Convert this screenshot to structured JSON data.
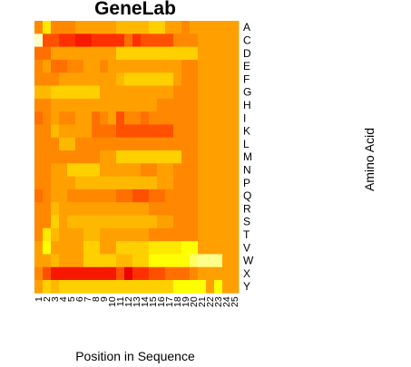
{
  "chart_data": {
    "type": "heatmap",
    "title": "GeneLab",
    "xlabel": "Position in Sequence",
    "ylabel": "Amino Acid",
    "x": [
      "1",
      "2",
      "3",
      "4",
      "5",
      "6",
      "7",
      "8",
      "9",
      "10",
      "11",
      "12",
      "13",
      "14",
      "15",
      "16",
      "17",
      "18",
      "19",
      "20",
      "21",
      "22",
      "23",
      "24",
      "25"
    ],
    "y": [
      "A",
      "C",
      "D",
      "E",
      "F",
      "G",
      "H",
      "I",
      "K",
      "L",
      "M",
      "N",
      "P",
      "Q",
      "R",
      "S",
      "T",
      "V",
      "W",
      "X",
      "Y"
    ],
    "legend": "none",
    "grid": false,
    "colormap": [
      "#ffffc8",
      "#ffff00",
      "#ffd000",
      "#ffa000",
      "#ff7000",
      "#ff3000",
      "#ee0000"
    ],
    "values": [
      [
        3.5,
        1.5,
        3.5,
        3.5,
        3.5,
        3.0,
        3.0,
        3.0,
        3.0,
        3.0,
        2.5,
        2.5,
        2.5,
        2.5,
        2.0,
        2.0,
        3.0,
        3.0,
        3.5,
        3.0,
        3.0,
        3.0,
        3.0,
        3.0,
        3.0
      ],
      [
        0.0,
        4.5,
        4.5,
        5.0,
        5.0,
        5.5,
        5.5,
        5.0,
        5.0,
        5.0,
        5.0,
        4.0,
        5.0,
        4.5,
        4.5,
        4.5,
        4.5,
        3.5,
        3.5,
        3.5,
        3.0,
        3.0,
        3.0,
        3.0,
        3.0
      ],
      [
        4.0,
        4.0,
        3.0,
        3.0,
        3.0,
        3.0,
        3.0,
        3.0,
        3.0,
        3.0,
        2.0,
        2.0,
        2.0,
        2.0,
        2.0,
        2.0,
        2.0,
        2.0,
        2.0,
        2.0,
        3.0,
        3.0,
        3.0,
        3.0,
        3.0
      ],
      [
        3.5,
        3.0,
        4.0,
        4.0,
        3.5,
        3.5,
        3.0,
        3.0,
        3.5,
        3.0,
        3.0,
        3.0,
        3.0,
        3.0,
        3.0,
        3.0,
        3.0,
        3.0,
        3.5,
        3.5,
        3.0,
        3.0,
        3.0,
        3.0,
        3.0
      ],
      [
        3.5,
        3.5,
        3.5,
        3.0,
        3.0,
        3.0,
        3.0,
        3.0,
        3.0,
        3.0,
        2.5,
        2.0,
        2.0,
        2.0,
        2.0,
        2.0,
        2.0,
        3.0,
        3.5,
        3.5,
        3.0,
        3.0,
        3.0,
        3.0,
        3.0
      ],
      [
        2.5,
        2.5,
        2.0,
        2.0,
        2.0,
        2.0,
        2.0,
        2.0,
        3.0,
        3.0,
        3.0,
        3.0,
        3.0,
        3.0,
        3.0,
        3.0,
        3.0,
        3.5,
        3.5,
        3.5,
        3.0,
        3.0,
        3.0,
        3.0,
        3.0
      ],
      [
        3.5,
        3.5,
        3.0,
        3.0,
        3.0,
        3.0,
        3.0,
        3.0,
        3.0,
        3.0,
        3.0,
        3.0,
        3.0,
        3.0,
        3.0,
        3.5,
        3.5,
        3.5,
        3.5,
        3.5,
        3.0,
        3.0,
        3.0,
        3.0,
        3.0
      ],
      [
        4.0,
        3.5,
        3.0,
        3.5,
        3.5,
        3.0,
        3.0,
        4.0,
        3.5,
        3.0,
        4.5,
        3.5,
        3.5,
        4.0,
        3.5,
        3.5,
        3.5,
        3.5,
        3.5,
        3.5,
        3.0,
        3.0,
        3.0,
        3.0,
        3.0
      ],
      [
        3.5,
        3.5,
        2.5,
        3.0,
        3.0,
        3.0,
        3.0,
        4.0,
        4.0,
        4.0,
        4.5,
        4.5,
        4.5,
        4.5,
        4.5,
        4.5,
        4.5,
        3.5,
        3.5,
        3.5,
        3.0,
        3.0,
        3.0,
        3.0,
        3.0
      ],
      [
        3.5,
        3.5,
        3.5,
        2.5,
        2.5,
        3.5,
        3.5,
        3.5,
        3.5,
        3.5,
        3.5,
        3.5,
        3.5,
        3.5,
        3.5,
        3.5,
        3.5,
        3.5,
        3.5,
        3.5,
        3.0,
        3.0,
        3.0,
        3.0,
        3.0
      ],
      [
        3.5,
        3.5,
        3.5,
        3.5,
        3.5,
        3.5,
        3.5,
        3.5,
        3.0,
        3.0,
        2.0,
        2.0,
        2.0,
        2.0,
        2.0,
        2.0,
        2.0,
        2.0,
        3.5,
        3.5,
        3.0,
        3.0,
        3.0,
        3.0,
        3.0
      ],
      [
        3.5,
        3.5,
        3.0,
        3.0,
        2.0,
        2.0,
        2.0,
        2.0,
        3.0,
        3.0,
        3.0,
        3.0,
        3.0,
        3.5,
        3.5,
        3.0,
        3.0,
        3.5,
        3.5,
        3.5,
        3.0,
        3.0,
        3.0,
        3.0,
        3.0
      ],
      [
        3.5,
        3.5,
        3.0,
        3.0,
        3.0,
        2.5,
        2.5,
        2.5,
        2.5,
        2.5,
        2.5,
        2.5,
        2.5,
        2.5,
        2.5,
        3.0,
        3.0,
        3.5,
        3.5,
        3.5,
        3.0,
        3.0,
        3.0,
        3.0,
        3.0
      ],
      [
        4.0,
        3.5,
        3.0,
        3.0,
        3.5,
        3.5,
        3.5,
        3.5,
        3.5,
        3.5,
        4.0,
        4.0,
        4.5,
        4.5,
        4.0,
        4.0,
        3.5,
        3.5,
        3.5,
        3.5,
        3.0,
        3.0,
        3.0,
        3.0,
        3.0
      ],
      [
        3.5,
        3.5,
        2.5,
        3.0,
        3.0,
        3.0,
        3.0,
        3.0,
        3.0,
        3.0,
        3.0,
        3.0,
        3.0,
        3.0,
        3.5,
        3.5,
        3.5,
        3.5,
        3.5,
        3.5,
        3.0,
        3.0,
        3.0,
        3.0,
        3.0
      ],
      [
        3.5,
        3.5,
        2.0,
        3.0,
        2.5,
        2.5,
        2.5,
        2.5,
        2.5,
        2.5,
        2.5,
        2.5,
        2.5,
        2.5,
        2.5,
        3.0,
        3.0,
        3.5,
        3.5,
        3.5,
        3.0,
        3.0,
        3.0,
        3.0,
        3.0
      ],
      [
        3.5,
        1.5,
        2.5,
        3.0,
        3.0,
        3.0,
        2.5,
        2.5,
        3.0,
        3.0,
        3.0,
        3.0,
        3.0,
        3.0,
        3.5,
        3.5,
        3.5,
        3.5,
        3.5,
        3.5,
        3.0,
        3.0,
        3.0,
        3.0,
        3.0
      ],
      [
        3.0,
        1.0,
        3.0,
        3.0,
        3.0,
        3.0,
        2.0,
        2.0,
        3.0,
        3.0,
        2.0,
        2.0,
        2.0,
        2.0,
        1.5,
        1.5,
        1.5,
        1.5,
        1.0,
        1.0,
        3.0,
        3.0,
        3.0,
        3.0,
        3.0
      ],
      [
        3.0,
        3.0,
        2.5,
        3.0,
        3.0,
        3.0,
        2.0,
        2.0,
        2.0,
        2.0,
        2.5,
        2.5,
        2.0,
        2.0,
        1.0,
        1.0,
        1.0,
        1.0,
        1.0,
        0.5,
        0.3,
        0.3,
        0.3,
        3.0,
        3.0
      ],
      [
        3.5,
        4.5,
        5.5,
        5.5,
        5.5,
        5.5,
        5.5,
        5.5,
        5.5,
        5.5,
        4.5,
        6.0,
        5.0,
        5.0,
        4.5,
        4.5,
        4.0,
        4.0,
        4.0,
        3.5,
        3.0,
        3.0,
        3.0,
        3.0,
        3.0
      ],
      [
        3.0,
        2.0,
        2.5,
        2.0,
        2.0,
        2.0,
        2.0,
        2.0,
        2.0,
        2.0,
        2.0,
        2.0,
        2.0,
        2.0,
        2.0,
        2.0,
        2.0,
        1.0,
        1.0,
        1.0,
        1.0,
        3.0,
        1.0,
        3.0,
        3.0
      ]
    ]
  }
}
